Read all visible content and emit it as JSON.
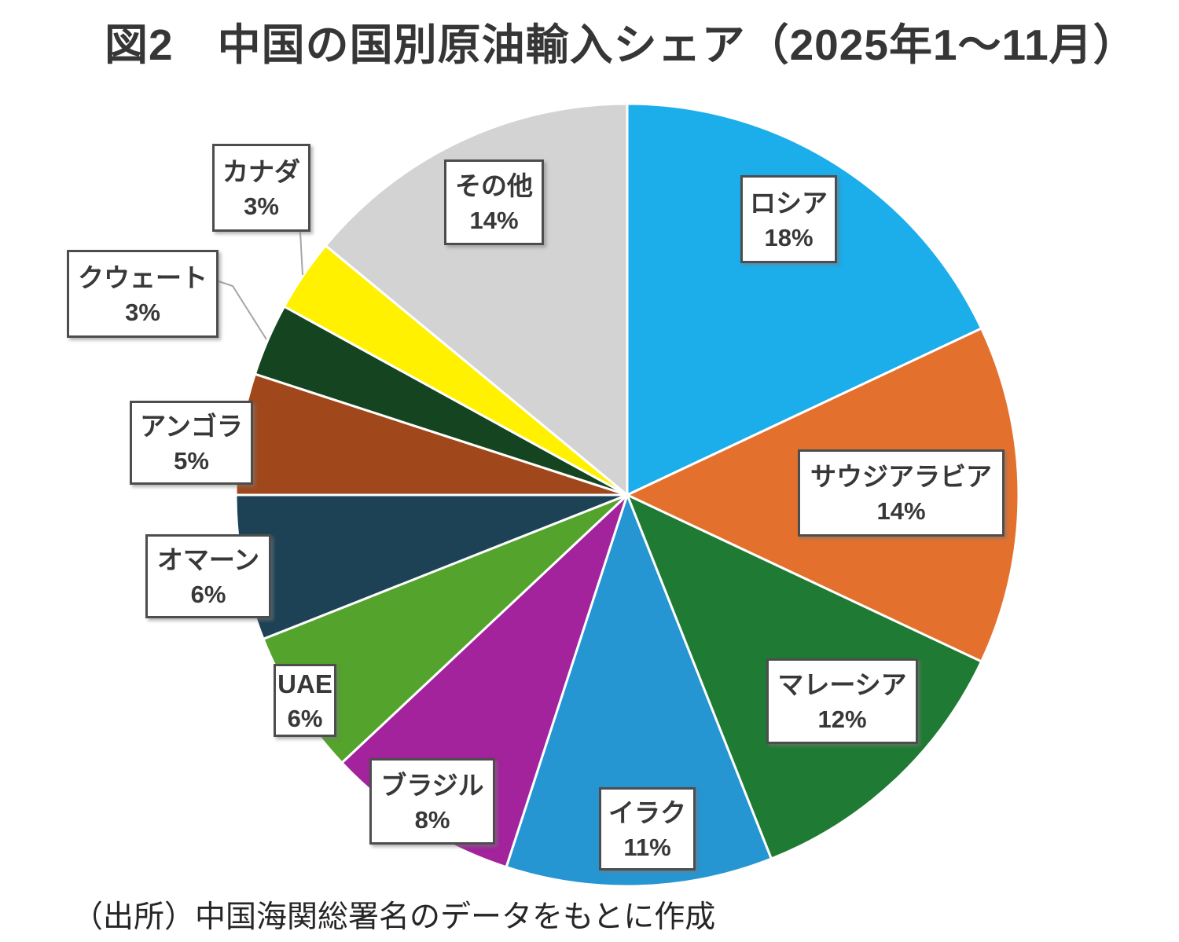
{
  "title": "図2　中国の国別原油輸入シェア（2025年1～11月）",
  "source": "（出所）中国海関総署名のデータをもとに作成",
  "chart_data": {
    "type": "pie",
    "title": "中国の国別原油輸入シェア（2025年1～11月）",
    "unit": "%",
    "start_angle_deg": 0,
    "direction": "clockwise",
    "separator_color": "#ffffff",
    "items": [
      {
        "id": "russia",
        "label": "ロシア",
        "value": 18,
        "pct_label": "18%",
        "color": "#1CADEB"
      },
      {
        "id": "saudi-arabia",
        "label": "サウジアラビア",
        "value": 14,
        "pct_label": "14%",
        "color": "#E4702E"
      },
      {
        "id": "malaysia",
        "label": "マレーシア",
        "value": 12,
        "pct_label": "12%",
        "color": "#1F7A33"
      },
      {
        "id": "iraq",
        "label": "イラク",
        "value": 11,
        "pct_label": "11%",
        "color": "#2596D2"
      },
      {
        "id": "brazil",
        "label": "ブラジル",
        "value": 8,
        "pct_label": "8%",
        "color": "#A2239B"
      },
      {
        "id": "uae",
        "label": "UAE",
        "value": 6,
        "pct_label": "6%",
        "color": "#53A32C"
      },
      {
        "id": "oman",
        "label": "オマーン",
        "value": 6,
        "pct_label": "6%",
        "color": "#1E4255"
      },
      {
        "id": "angola",
        "label": "アンゴラ",
        "value": 5,
        "pct_label": "5%",
        "color": "#A0481C"
      },
      {
        "id": "kuwait",
        "label": "クウェート",
        "value": 3,
        "pct_label": "3%",
        "color": "#154420"
      },
      {
        "id": "canada",
        "label": "カナダ",
        "value": 3,
        "pct_label": "3%",
        "color": "#FFF100"
      },
      {
        "id": "others",
        "label": "その他",
        "value": 14,
        "pct_label": "14%",
        "color": "#D3D3D3"
      }
    ]
  }
}
